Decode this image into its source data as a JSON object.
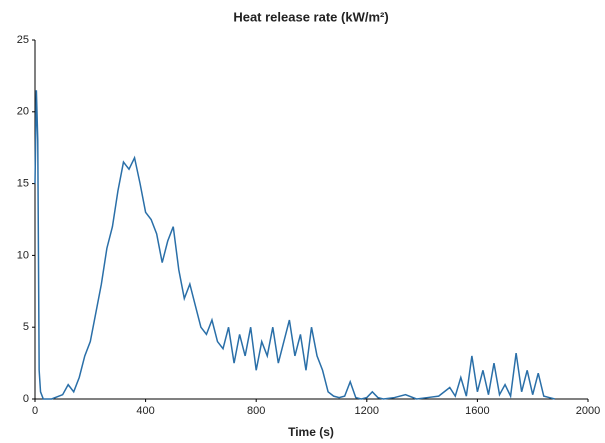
{
  "chart_data": {
    "type": "line",
    "title": "Heat release rate (kW/m²)",
    "x_label": "Time (s)",
    "x": [
      0,
      5,
      10,
      15,
      20,
      30,
      60,
      100,
      120,
      140,
      160,
      180,
      200,
      220,
      240,
      260,
      280,
      300,
      320,
      340,
      360,
      380,
      400,
      420,
      440,
      460,
      480,
      500,
      520,
      540,
      560,
      580,
      600,
      620,
      640,
      660,
      680,
      700,
      720,
      740,
      760,
      780,
      800,
      820,
      840,
      860,
      880,
      900,
      920,
      940,
      960,
      980,
      1000,
      1020,
      1040,
      1060,
      1080,
      1100,
      1120,
      1140,
      1160,
      1180,
      1200,
      1220,
      1240,
      1260,
      1300,
      1340,
      1380,
      1420,
      1460,
      1500,
      1520,
      1540,
      1560,
      1580,
      1600,
      1620,
      1640,
      1660,
      1680,
      1700,
      1720,
      1740,
      1760,
      1780,
      1800,
      1820,
      1840,
      1860,
      1880
    ],
    "series": [
      {
        "name": "Heat release rate",
        "color": "#2a6fa8",
        "values": [
          15,
          21.5,
          18,
          2,
          0.5,
          0,
          0,
          0.3,
          1,
          0.5,
          1.5,
          3,
          4,
          6,
          8,
          10.5,
          12,
          14.5,
          16.5,
          16,
          16.8,
          15,
          13,
          12.5,
          11.5,
          9.5,
          11,
          12,
          9,
          7,
          8,
          6.5,
          5,
          4.5,
          5.5,
          4,
          3.5,
          5,
          2.5,
          4.5,
          3,
          5,
          2,
          4,
          3,
          5,
          2.5,
          4,
          5.5,
          3,
          4.5,
          2,
          5,
          3,
          2,
          0.5,
          0.2,
          0.1,
          0.2,
          1.2,
          0.1,
          0,
          0.1,
          0.5,
          0.1,
          0,
          0.1,
          0.3,
          0,
          0.1,
          0.2,
          0.8,
          0.2,
          1.5,
          0.2,
          3,
          0.5,
          2,
          0.3,
          2.5,
          0.3,
          1,
          0.2,
          3.2,
          0.5,
          2,
          0.3,
          1.8,
          0.2,
          0.1,
          0
        ]
      }
    ],
    "xlim": [
      0,
      2000
    ],
    "xticks": [
      0,
      400,
      800,
      1200,
      1600,
      2000
    ],
    "ylim": [
      0,
      25
    ],
    "yticks": [
      0,
      5,
      10,
      15,
      20,
      25
    ],
    "grid": false
  }
}
